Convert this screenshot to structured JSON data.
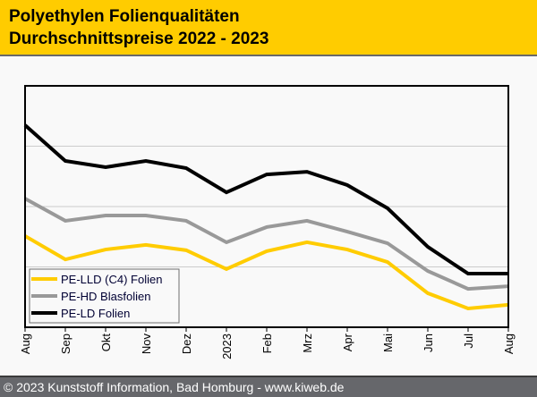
{
  "header": {
    "title_line1": "Polyethylen Folienqualitäten",
    "title_line2": "Durchschnittspreise 2022 - 2023"
  },
  "footer": {
    "text": "© 2023 Kunststoff Information, Bad Homburg - www.kiweb.de"
  },
  "colors": {
    "header_bg": "#ffcc00",
    "footer_bg": "#66676b",
    "pe_lld": "#ffcc00",
    "pe_hd": "#999999",
    "pe_ld": "#000000"
  },
  "chart_data": {
    "type": "line",
    "title": "Polyethylen Folienqualitäten Durchschnittspreise 2022 - 2023",
    "xlabel": "",
    "ylabel": "",
    "y_units": "relative index (no y-axis labels shown)",
    "ylim": [
      0,
      100
    ],
    "grid": true,
    "gridlines": [
      25,
      50,
      75
    ],
    "legend_position": "bottom-left",
    "categories": [
      "Aug",
      "Sep",
      "Okt",
      "Nov",
      "Dez",
      "2023",
      "Feb",
      "Mrz",
      "Apr",
      "Mai",
      "Jun",
      "Jul",
      "Aug"
    ],
    "series": [
      {
        "name": "PE-LLD (C4) Folien",
        "color": "#ffcc00",
        "values": [
          37.8,
          28.1,
          32.2,
          34.1,
          31.9,
          24.1,
          31.5,
          35.2,
          32.2,
          27.0,
          14.1,
          7.8,
          9.3
        ]
      },
      {
        "name": "PE-HD Blasfolien",
        "color": "#999999",
        "values": [
          53.3,
          44.1,
          46.3,
          46.3,
          44.1,
          35.2,
          41.5,
          44.1,
          39.6,
          34.8,
          23.3,
          15.9,
          17.0
        ]
      },
      {
        "name": "PE-LD Folien",
        "color": "#000000",
        "values": [
          83.7,
          68.9,
          66.3,
          68.9,
          65.9,
          55.9,
          63.3,
          64.4,
          58.9,
          49.3,
          33.3,
          22.2,
          22.2
        ]
      }
    ]
  }
}
